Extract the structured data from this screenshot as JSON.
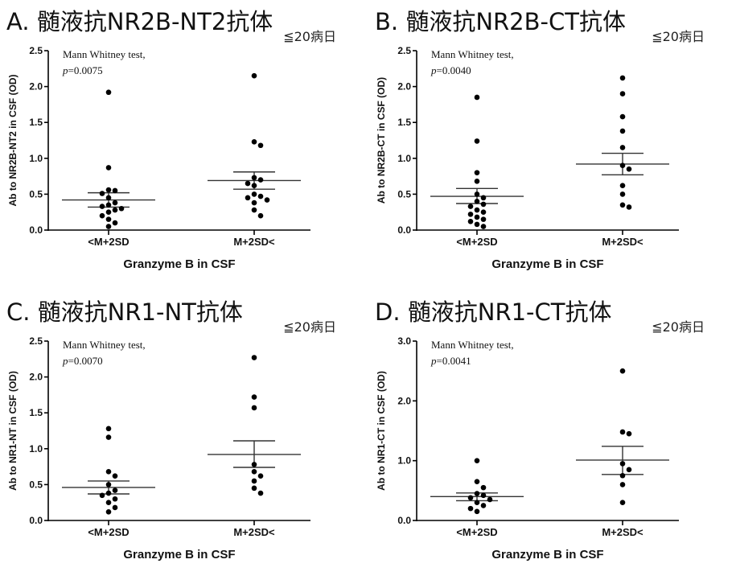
{
  "chart_data": [
    {
      "type": "scatter",
      "title": "A. 髄液抗NR2B-NT2抗体",
      "ylabel": "Ab to NR2B-NT2 in CSF (OD)",
      "xlabel": "Granzyme B in CSF",
      "categories": [
        "<M+2SD",
        "M+2SD<"
      ],
      "ylim": [
        0,
        2.5
      ],
      "yticks": [
        "0.0",
        "0.5",
        "1.0",
        "1.5",
        "2.0",
        "2.5"
      ],
      "test_label": "Mann Whitney test,",
      "p_value": "=0.0075",
      "day_label": "≦20病日",
      "groups": [
        {
          "category": "<M+2SD",
          "mean": 0.42,
          "sem_low": 0.32,
          "sem_high": 0.52,
          "points": [
            1.92,
            0.87,
            0.56,
            0.55,
            0.51,
            0.45,
            0.38,
            0.35,
            0.33,
            0.3,
            0.28,
            0.25,
            0.2,
            0.15,
            0.1,
            0.05
          ]
        },
        {
          "category": "M+2SD<",
          "mean": 0.69,
          "sem_low": 0.57,
          "sem_high": 0.81,
          "points": [
            2.15,
            1.23,
            1.18,
            0.73,
            0.7,
            0.65,
            0.62,
            0.5,
            0.47,
            0.45,
            0.42,
            0.38,
            0.28,
            0.2
          ]
        }
      ]
    },
    {
      "type": "scatter",
      "title": "B. 髄液抗NR2B-CT抗体",
      "ylabel": "Ab to NR2B-CT in CSF (OD)",
      "xlabel": "Granzyme B in CSF",
      "categories": [
        "<M+2SD",
        "M+2SD<"
      ],
      "ylim": [
        0,
        2.5
      ],
      "yticks": [
        "0.0",
        "0.5",
        "1.0",
        "1.5",
        "2.0",
        "2.5"
      ],
      "test_label": "Mann Whitney test,",
      "p_value": "=0.0040",
      "day_label": "≦20病日",
      "groups": [
        {
          "category": "<M+2SD",
          "mean": 0.47,
          "sem_low": 0.37,
          "sem_high": 0.58,
          "points": [
            1.85,
            1.24,
            0.8,
            0.68,
            0.5,
            0.45,
            0.4,
            0.36,
            0.33,
            0.28,
            0.25,
            0.22,
            0.18,
            0.15,
            0.12,
            0.08,
            0.05
          ]
        },
        {
          "category": "M+2SD<",
          "mean": 0.92,
          "sem_low": 0.77,
          "sem_high": 1.07,
          "points": [
            2.12,
            1.9,
            1.58,
            1.38,
            1.15,
            0.9,
            0.85,
            0.62,
            0.5,
            0.35,
            0.32
          ]
        }
      ]
    },
    {
      "type": "scatter",
      "title": "C. 髄液抗NR1-NT抗体",
      "ylabel": "Ab to NR1-NT in CSF (OD)",
      "xlabel": "Granzyme B in CSF",
      "categories": [
        "<M+2SD",
        "M+2SD<"
      ],
      "ylim": [
        0,
        2.5
      ],
      "yticks": [
        "0.0",
        "0.5",
        "1.0",
        "1.5",
        "2.0",
        "2.5"
      ],
      "test_label": "Mann Whitney test,",
      "p_value": "=0.0070",
      "day_label": "≦20病日",
      "groups": [
        {
          "category": "<M+2SD",
          "mean": 0.46,
          "sem_low": 0.37,
          "sem_high": 0.55,
          "points": [
            1.28,
            1.16,
            0.68,
            0.62,
            0.5,
            0.42,
            0.38,
            0.35,
            0.3,
            0.25,
            0.18,
            0.12
          ]
        },
        {
          "category": "M+2SD<",
          "mean": 0.92,
          "sem_low": 0.74,
          "sem_high": 1.11,
          "points": [
            2.27,
            1.72,
            1.57,
            0.78,
            0.68,
            0.62,
            0.55,
            0.45,
            0.38
          ]
        }
      ]
    },
    {
      "type": "scatter",
      "title": "D. 髄液抗NR1-CT抗体",
      "ylabel": "Ab to NR1-CT in CSF (OD)",
      "xlabel": "Granzyme B in CSF",
      "categories": [
        "<M+2SD",
        "M+2SD<"
      ],
      "ylim": [
        0,
        3.0
      ],
      "yticks": [
        "0.0",
        "1.0",
        "2.0",
        "3.0"
      ],
      "test_label": "Mann Whitney test,",
      "p_value": "=0.0041",
      "day_label": "≦20病日",
      "groups": [
        {
          "category": "<M+2SD",
          "mean": 0.4,
          "sem_low": 0.33,
          "sem_high": 0.46,
          "points": [
            1.0,
            0.65,
            0.55,
            0.45,
            0.42,
            0.38,
            0.35,
            0.3,
            0.25,
            0.2,
            0.15
          ]
        },
        {
          "category": "M+2SD<",
          "mean": 1.01,
          "sem_low": 0.77,
          "sem_high": 1.24,
          "points": [
            2.5,
            1.48,
            1.45,
            0.95,
            0.85,
            0.75,
            0.6,
            0.3
          ]
        }
      ]
    }
  ]
}
